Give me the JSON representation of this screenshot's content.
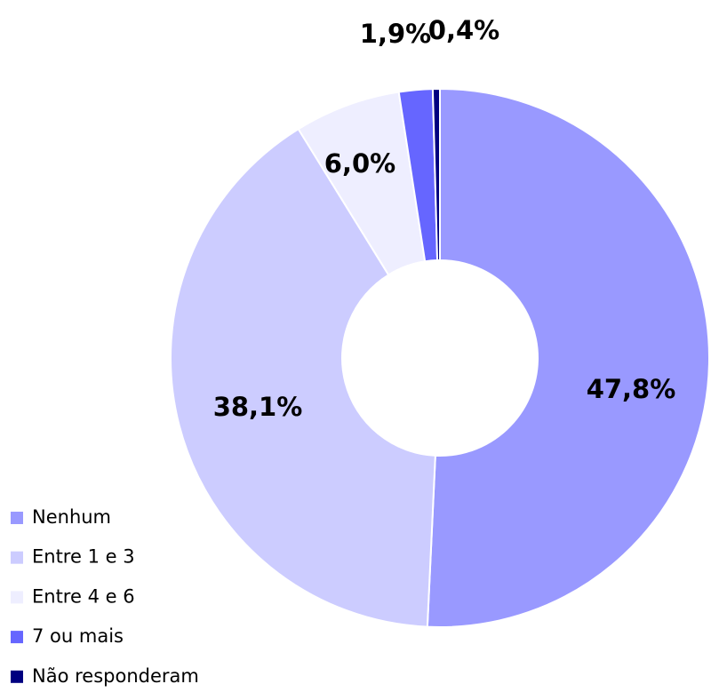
{
  "chart_data": {
    "type": "donut",
    "categories": [
      "Nenhum",
      "Entre 1 e 3",
      "Entre 4 e 6",
      "7 ou mais",
      "Não responderam"
    ],
    "values": [
      47.8,
      38.1,
      6.0,
      1.9,
      0.4
    ],
    "value_labels": [
      "47,8%",
      "38,1%",
      "6,0%",
      "1,9%",
      "0,4%"
    ],
    "colors": [
      "#9999ff",
      "#ccccff",
      "#eeeeff",
      "#6666ff",
      "#000080"
    ],
    "legend": "bottom-left"
  }
}
